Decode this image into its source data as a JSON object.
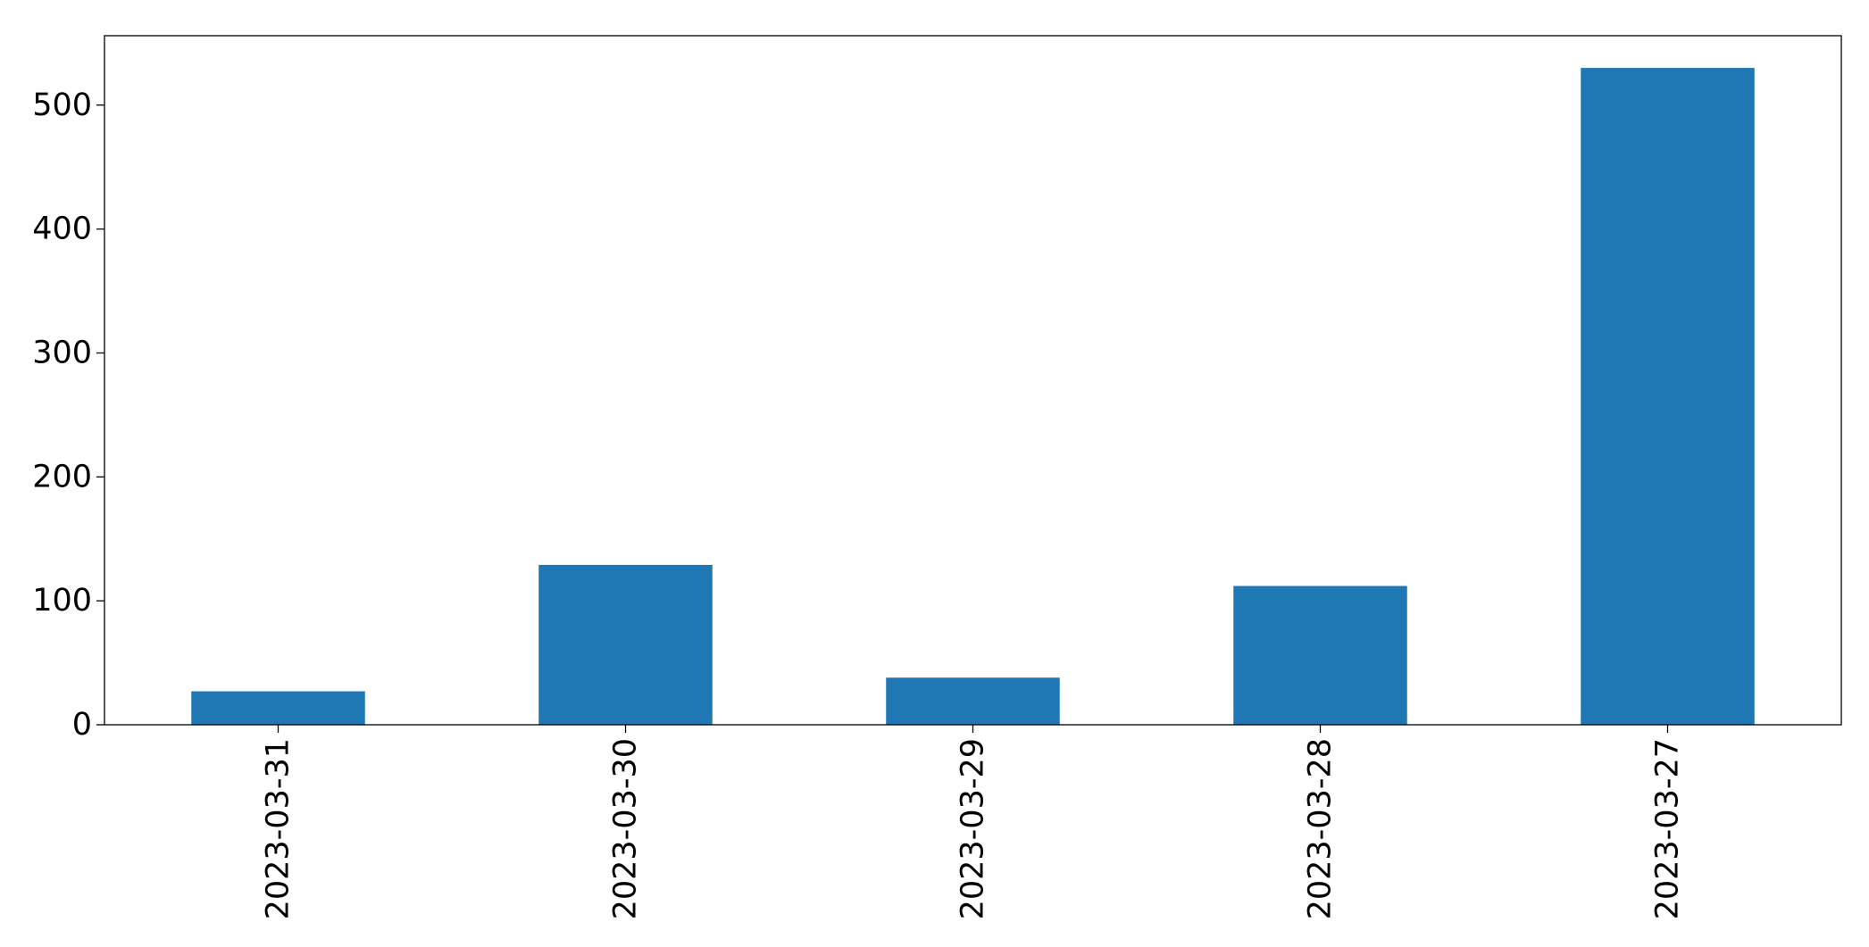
{
  "chart_data": {
    "type": "bar",
    "title": "",
    "xlabel": "",
    "ylabel": "",
    "categories": [
      "2023-03-31",
      "2023-03-30",
      "2023-03-29",
      "2023-03-28",
      "2023-03-27"
    ],
    "values": [
      27,
      129,
      38,
      112,
      530
    ],
    "ylim": [
      0,
      556
    ],
    "yticks": [
      0,
      100,
      200,
      300,
      400,
      500
    ],
    "bar_color": "#1f77b4",
    "grid": false,
    "legend": false,
    "x_tick_rotation": "vertical"
  }
}
